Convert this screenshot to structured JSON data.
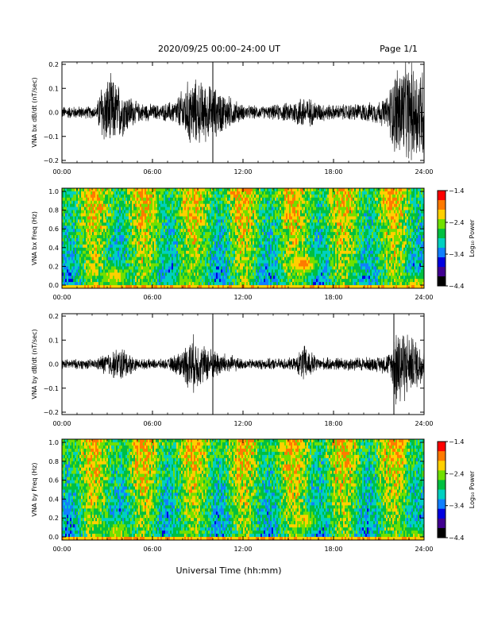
{
  "header": {
    "title": "2020/09/25  00:00–24:00 UT",
    "page": "Page 1/1"
  },
  "chart_data": [
    {
      "type": "line",
      "ylabel": "VNA bx dB/dt (nT/sec)",
      "xlim": [
        0,
        24
      ],
      "ylim": [
        -0.2,
        0.2
      ],
      "yticks": [
        "0.2",
        "0.1",
        "0.0",
        "−0.1",
        "−0.2"
      ],
      "xticks": [
        "00:00",
        "06:00",
        "12:00",
        "18:00",
        "24:00"
      ],
      "activity": [
        {
          "x": 0.0,
          "amp": 0.025
        },
        {
          "x": 2.3,
          "amp": 0.025
        },
        {
          "x": 2.6,
          "amp": 0.12
        },
        {
          "x": 3.2,
          "amp": 0.15
        },
        {
          "x": 4.0,
          "amp": 0.1
        },
        {
          "x": 5.0,
          "amp": 0.04
        },
        {
          "x": 6.5,
          "amp": 0.03
        },
        {
          "x": 7.5,
          "amp": 0.05
        },
        {
          "x": 8.5,
          "amp": 0.14
        },
        {
          "x": 9.5,
          "amp": 0.12
        },
        {
          "x": 10.5,
          "amp": 0.09
        },
        {
          "x": 11.0,
          "amp": 0.07
        },
        {
          "x": 12.0,
          "amp": 0.03
        },
        {
          "x": 13.5,
          "amp": 0.025
        },
        {
          "x": 15.0,
          "amp": 0.04
        },
        {
          "x": 16.0,
          "amp": 0.07
        },
        {
          "x": 17.0,
          "amp": 0.04
        },
        {
          "x": 18.0,
          "amp": 0.03
        },
        {
          "x": 20.5,
          "amp": 0.04
        },
        {
          "x": 21.5,
          "amp": 0.06
        },
        {
          "x": 22.2,
          "amp": 0.2
        },
        {
          "x": 23.2,
          "amp": 0.2
        },
        {
          "x": 24.0,
          "amp": 0.2
        }
      ],
      "spikes": [
        10.0
      ]
    },
    {
      "type": "heatmap",
      "ylabel": "VNA bx Freq (Hz)",
      "xlim": [
        0,
        24
      ],
      "ylim": [
        0,
        1.0
      ],
      "yticks": [
        "1.0",
        "0.8",
        "0.6",
        "0.4",
        "0.2",
        "0.0"
      ],
      "xticks": [
        "00:00",
        "06:00",
        "12:00",
        "18:00",
        "24:00"
      ],
      "colorbar": {
        "label": "Log₁₀ Power",
        "ticks": [
          "−1.4",
          "−2.4",
          "−3.4",
          "−4.4"
        ],
        "colors": [
          "#ff0000",
          "#ff7a00",
          "#ffd000",
          "#70e000",
          "#00c040",
          "#00d0c0",
          "#1080ff",
          "#0000e0",
          "#400090",
          "#000000"
        ]
      },
      "enhancements": [
        {
          "x": 3.5,
          "f": 0.12,
          "level": 0.8
        },
        {
          "x": 8.3,
          "f": 0.05,
          "level": 0.6
        },
        {
          "x": 16.0,
          "f": 0.25,
          "level": 0.95
        },
        {
          "x": 23.5,
          "f": 0.02,
          "level": 0.8
        }
      ]
    },
    {
      "type": "line",
      "ylabel": "VNA by dB/dt (nT/sec)",
      "xlim": [
        0,
        24
      ],
      "ylim": [
        -0.2,
        0.2
      ],
      "yticks": [
        "0.2",
        "0.1",
        "0.0",
        "−0.1",
        "−0.2"
      ],
      "xticks": [
        "00:00",
        "06:00",
        "12:00",
        "18:00",
        "24:00"
      ],
      "activity": [
        {
          "x": 0.0,
          "amp": 0.02
        },
        {
          "x": 2.3,
          "amp": 0.02
        },
        {
          "x": 2.7,
          "amp": 0.04
        },
        {
          "x": 4.0,
          "amp": 0.07
        },
        {
          "x": 5.0,
          "amp": 0.02
        },
        {
          "x": 7.0,
          "amp": 0.02
        },
        {
          "x": 8.0,
          "amp": 0.06
        },
        {
          "x": 8.6,
          "amp": 0.12
        },
        {
          "x": 9.3,
          "amp": 0.08
        },
        {
          "x": 10.5,
          "amp": 0.05
        },
        {
          "x": 12.0,
          "amp": 0.02
        },
        {
          "x": 15.5,
          "amp": 0.025
        },
        {
          "x": 16.0,
          "amp": 0.08
        },
        {
          "x": 17.0,
          "amp": 0.025
        },
        {
          "x": 21.0,
          "amp": 0.03
        },
        {
          "x": 21.8,
          "amp": 0.05
        },
        {
          "x": 22.2,
          "amp": 0.2
        },
        {
          "x": 23.0,
          "amp": 0.12
        },
        {
          "x": 24.0,
          "amp": 0.08
        }
      ],
      "spikes": [
        10.0,
        22.0
      ]
    },
    {
      "type": "heatmap",
      "ylabel": "VNA by Freq (Hz)",
      "xlim": [
        0,
        24
      ],
      "ylim": [
        0,
        1.0
      ],
      "yticks": [
        "1.0",
        "0.8",
        "0.6",
        "0.4",
        "0.2",
        "0.0"
      ],
      "xticks": [
        "00:00",
        "06:00",
        "12:00",
        "18:00",
        "24:00"
      ],
      "colorbar": {
        "label": "Log₁₀ Power",
        "ticks": [
          "−1.4",
          "−2.4",
          "−3.4",
          "−4.4"
        ],
        "colors": [
          "#ff0000",
          "#ff7a00",
          "#ffd000",
          "#70e000",
          "#00c040",
          "#00d0c0",
          "#1080ff",
          "#0000e0",
          "#400090",
          "#000000"
        ]
      },
      "enhancements": [
        {
          "x": 3.7,
          "f": 0.08,
          "level": 0.7
        },
        {
          "x": 8.3,
          "f": 0.04,
          "level": 0.55
        },
        {
          "x": 16.0,
          "f": 0.2,
          "level": 0.8
        },
        {
          "x": 23.5,
          "f": 0.02,
          "level": 0.7
        }
      ]
    }
  ],
  "xaxis": {
    "label": "Universal Time (hh:mm)"
  }
}
